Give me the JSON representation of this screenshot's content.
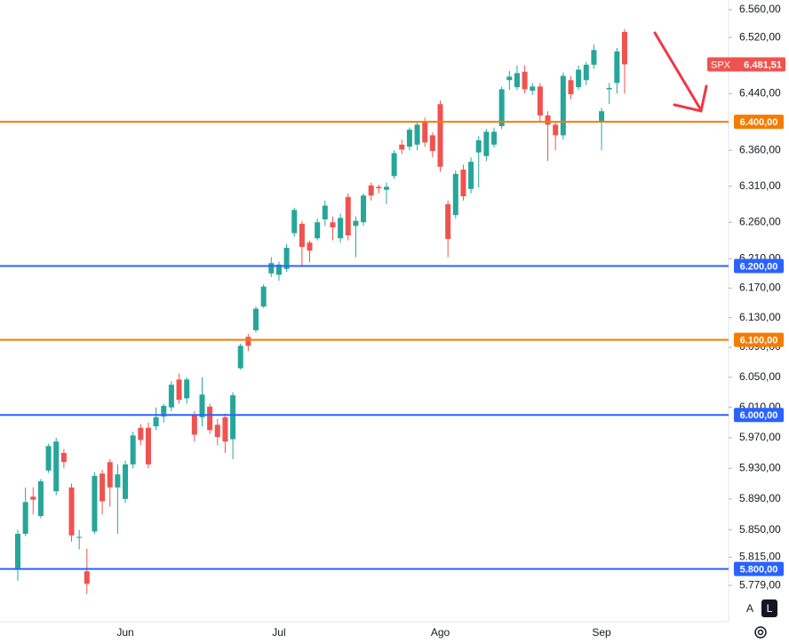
{
  "chart_data": {
    "type": "candlestick",
    "symbol": "SPX",
    "categories": [
      null,
      null,
      null,
      null,
      null,
      null,
      null,
      null,
      null,
      null,
      null,
      null,
      null,
      null,
      "Jun",
      null,
      null,
      null,
      null,
      null,
      null,
      null,
      null,
      null,
      null,
      null,
      null,
      null,
      null,
      null,
      null,
      null,
      null,
      null,
      "Jul",
      null,
      null,
      null,
      null,
      null,
      null,
      null,
      null,
      null,
      null,
      null,
      null,
      null,
      null,
      null,
      null,
      null,
      null,
      null,
      null,
      "Ago",
      null,
      null,
      null,
      null,
      null,
      null,
      null,
      null,
      null,
      null,
      null,
      null,
      null,
      null,
      null,
      null,
      null,
      null,
      null,
      null,
      "Sep",
      null,
      null,
      null
    ],
    "open": [
      5801,
      5845,
      5893,
      5868,
      5927,
      5900,
      5950,
      5905,
      5840,
      5797,
      5848,
      5923,
      5938,
      5905,
      5890,
      5935,
      5983,
      5983,
      5985,
      5998,
      6010,
      6047,
      6022,
      6000,
      5997,
      6011,
      5987,
      5997,
      5968,
      6062,
      6104,
      6113,
      6145,
      6190,
      6188,
      6196,
      6245,
      6258,
      6232,
      6238,
      6264,
      6260,
      6238,
      6295,
      6255,
      6260,
      6311,
      6309,
      6305,
      6324,
      6368,
      6365,
      6368,
      6401,
      6381,
      6425,
      6285,
      6270,
      6333,
      6306,
      6357,
      6352,
      6368,
      6394,
      6459,
      6449,
      6471,
      6444,
      6450,
      6409,
      6396,
      6381,
      6459,
      6449,
      6459,
      6481,
      6400,
      6446,
      6455,
      6528
    ],
    "high": [
      5850,
      5905,
      5905,
      5916,
      5962,
      5970,
      5955,
      5910,
      5850,
      5826,
      5925,
      5928,
      5942,
      5935,
      5940,
      5978,
      5988,
      5990,
      6010,
      6015,
      6045,
      6055,
      6050,
      6005,
      6050,
      6015,
      5995,
      6002,
      6030,
      6095,
      6108,
      6145,
      6175,
      6212,
      6206,
      6230,
      6280,
      6262,
      6235,
      6265,
      6290,
      6268,
      6272,
      6300,
      6268,
      6300,
      6315,
      6312,
      6315,
      6360,
      6375,
      6392,
      6400,
      6406,
      6385,
      6430,
      6290,
      6332,
      6340,
      6350,
      6380,
      6390,
      6392,
      6450,
      6472,
      6480,
      6480,
      6455,
      6455,
      6415,
      6400,
      6470,
      6465,
      6480,
      6485,
      6510,
      6420,
      6455,
      6505,
      6532
    ],
    "low": [
      5785,
      5842,
      5870,
      5865,
      5924,
      5895,
      5930,
      5835,
      5825,
      5768,
      5845,
      5870,
      5880,
      5845,
      5885,
      5930,
      5960,
      5930,
      5980,
      5990,
      6005,
      6015,
      6015,
      5965,
      5985,
      5975,
      5960,
      5950,
      5942,
      6060,
      6085,
      6110,
      6143,
      6185,
      6180,
      6192,
      6240,
      6200,
      6205,
      6235,
      6255,
      6235,
      6232,
      6235,
      6212,
      6255,
      6290,
      6300,
      6285,
      6320,
      6355,
      6360,
      6360,
      6365,
      6350,
      6330,
      6212,
      6265,
      6290,
      6300,
      6308,
      6345,
      6364,
      6390,
      6445,
      6445,
      6440,
      6438,
      6400,
      6345,
      6360,
      6375,
      6432,
      6445,
      6452,
      6475,
      6360,
      6425,
      6440,
      6440
    ],
    "close": [
      5845,
      5886,
      5889,
      5913,
      5959,
      5965,
      5938,
      5843,
      5841,
      5781,
      5920,
      5887,
      5905,
      5922,
      5935,
      5973,
      5967,
      5935,
      5997,
      6012,
      6040,
      6020,
      6047,
      5974,
      6027,
      5980,
      5971,
      5965,
      6026,
      6092,
      6092,
      6142,
      6172,
      6204,
      6202,
      6225,
      6277,
      6226,
      6221,
      6260,
      6283,
      6253,
      6266,
      6242,
      6262,
      6297,
      6297,
      6307,
      6309,
      6356,
      6361,
      6389,
      6396,
      6371,
      6359,
      6337,
      6237,
      6327,
      6296,
      6344,
      6374,
      6386,
      6386,
      6446,
      6464,
      6469,
      6446,
      6450,
      6409,
      6396,
      6381,
      6465,
      6439,
      6474,
      6481,
      6502,
      6415,
      6448,
      6500,
      6481.51
    ],
    "up_color": "#26a69a",
    "down_color": "#ef5350",
    "ylim": [
      5733,
      6574
    ],
    "log_scale": true,
    "yticks": [
      {
        "value": 6560,
        "label": "6.560,00"
      },
      {
        "value": 6520,
        "label": "6.520,00"
      },
      {
        "value": 6440,
        "label": "6.440,00"
      },
      {
        "value": 6360,
        "label": "6.360,00"
      },
      {
        "value": 6310,
        "label": "6.310,00"
      },
      {
        "value": 6260,
        "label": "6.260,00"
      },
      {
        "value": 6210,
        "label": "6.210,00"
      },
      {
        "value": 6170,
        "label": "6.170,00"
      },
      {
        "value": 6130,
        "label": "6.130,00"
      },
      {
        "value": 6090,
        "label": "6.090,00"
      },
      {
        "value": 6050,
        "label": "6.050,00"
      },
      {
        "value": 6010,
        "label": "6.010,00"
      },
      {
        "value": 5970,
        "label": "5.970,00"
      },
      {
        "value": 5930,
        "label": "5.930,00"
      },
      {
        "value": 5890,
        "label": "5.890,00"
      },
      {
        "value": 5850,
        "label": "5.850,00"
      },
      {
        "value": 5815,
        "label": "5.815,00"
      },
      {
        "value": 5779,
        "label": "5.779,00"
      }
    ],
    "levels": [
      {
        "value": 6400,
        "label": "6.400,00",
        "color": "#f57c00"
      },
      {
        "value": 6200,
        "label": "6.200,00",
        "color": "#2962ff"
      },
      {
        "value": 6100,
        "label": "6.100,00",
        "color": "#f57c00"
      },
      {
        "value": 6000,
        "label": "6.000,00",
        "color": "#2962ff"
      },
      {
        "value": 5800,
        "label": "5.800,00",
        "color": "#2962ff"
      }
    ],
    "last_price": {
      "value": 6481.51,
      "label": "6.481,51"
    },
    "buttons": [
      "A",
      "L"
    ]
  }
}
